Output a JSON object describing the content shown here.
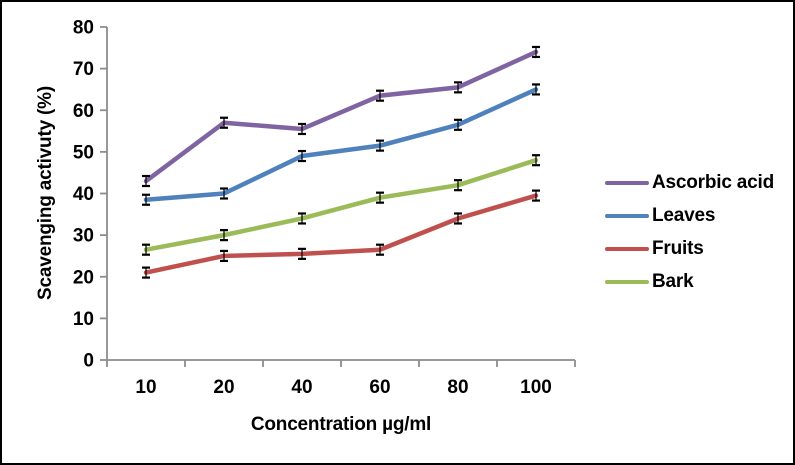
{
  "chart_data": {
    "type": "line",
    "title": "",
    "xlabel": "Concentration µg/ml",
    "ylabel": "Scavenging activuty (%)",
    "categories": [
      "10",
      "20",
      "40",
      "60",
      "80",
      "100"
    ],
    "yticks": [
      "0",
      "10",
      "20",
      "30",
      "40",
      "50",
      "60",
      "70",
      "80"
    ],
    "ylim": [
      0,
      80
    ],
    "ytick_step": 10,
    "grid": false,
    "legend_position": "right",
    "error_bar_half": 1.2,
    "series": [
      {
        "name": "Ascorbic acid",
        "color": "#8064A2",
        "values": [
          43,
          57,
          55.5,
          63.5,
          65.5,
          74
        ]
      },
      {
        "name": "Leaves",
        "color": "#4F81BD",
        "values": [
          38.5,
          40,
          49,
          51.5,
          56.5,
          65
        ]
      },
      {
        "name": "Fruits",
        "color": "#C0504D",
        "values": [
          21,
          25,
          25.5,
          26.5,
          34,
          39.5
        ]
      },
      {
        "name": "Bark",
        "color": "#9BBB59",
        "values": [
          26.5,
          30,
          34,
          39,
          42,
          48
        ]
      }
    ],
    "axis_color": "#8C8C8C",
    "error_color": "#000000",
    "text_color": "#000000"
  }
}
